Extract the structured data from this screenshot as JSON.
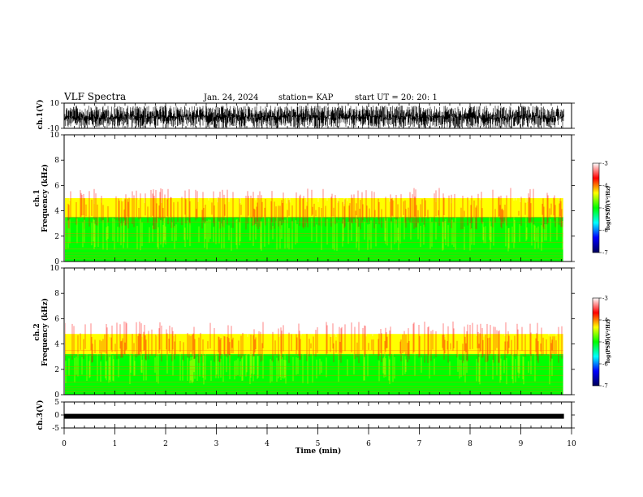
{
  "header": {
    "title": "VLF Spectra",
    "date": "Jan. 24, 2024",
    "station": "station= KAP",
    "start": "start UT =  20: 20: 1"
  },
  "chart_data": [
    {
      "type": "line",
      "name": "ch1-waveform",
      "ylabel": "ch.1(V)",
      "ylim": [
        -10,
        10
      ],
      "yticks": [
        "10",
        "-10"
      ],
      "xlim": [
        0,
        10
      ],
      "x_end": 9.85,
      "amplitude_range": [
        -10,
        8
      ]
    },
    {
      "type": "heatmap",
      "name": "ch1-spectrogram",
      "ylabel_line1": "ch.1",
      "ylabel_line2": "Frequency (kHz)",
      "ylim": [
        0,
        10
      ],
      "yticks": [
        "0",
        "2",
        "4",
        "6",
        "8",
        "10"
      ],
      "xlim": [
        0,
        10
      ],
      "colorbar": {
        "label": "log(PSD)(V²/Hz)",
        "range": [
          -7,
          -3
        ],
        "ticks": [
          "-3",
          "-4",
          "-5",
          "-6",
          "-7"
        ],
        "colors": [
          "#00005a",
          "#0000ff",
          "#00ffff",
          "#00ff00",
          "#ffff00",
          "#ff0000",
          "#ffffff"
        ]
      },
      "bands": [
        {
          "from": 0,
          "to": 1.0,
          "level": -5.2
        },
        {
          "from": 1.0,
          "to": 3.5,
          "level": -4.8
        },
        {
          "from": 3.5,
          "to": 5.0,
          "level": -4.1
        },
        {
          "from": 5.0,
          "to": 10,
          "level": -3.3
        }
      ]
    },
    {
      "type": "heatmap",
      "name": "ch2-spectrogram",
      "ylabel_line1": "ch.2",
      "ylabel_line2": "Frequency (kHz)",
      "ylim": [
        0,
        10
      ],
      "yticks": [
        "0",
        "2",
        "4",
        "6",
        "8",
        "10"
      ],
      "xlim": [
        0,
        10
      ],
      "colorbar": {
        "label": "log(PSD)(V²/Hz)",
        "range": [
          -7,
          -3
        ],
        "ticks": [
          "-3",
          "-4",
          "-5",
          "-6",
          "-7"
        ],
        "colors": [
          "#00005a",
          "#0000ff",
          "#00ffff",
          "#00ff00",
          "#ffff00",
          "#ff0000",
          "#ffffff"
        ]
      },
      "bands": [
        {
          "from": 0,
          "to": 3.2,
          "level": -5.3
        },
        {
          "from": 3.2,
          "to": 4.8,
          "level": -4.1
        },
        {
          "from": 4.8,
          "to": 10,
          "level": -3.3
        }
      ]
    },
    {
      "type": "line",
      "name": "ch3-waveform",
      "ylabel": "ch.3(V)",
      "ylim": [
        -5,
        5
      ],
      "yticks": [
        "5",
        "0",
        "-5"
      ],
      "xlim": [
        0,
        10
      ],
      "x_end": 9.85,
      "level": -0.5,
      "xlabel": "Time (min)",
      "xticks": [
        "0",
        "1",
        "2",
        "3",
        "4",
        "5",
        "6",
        "7",
        "8",
        "9",
        "10"
      ]
    }
  ]
}
